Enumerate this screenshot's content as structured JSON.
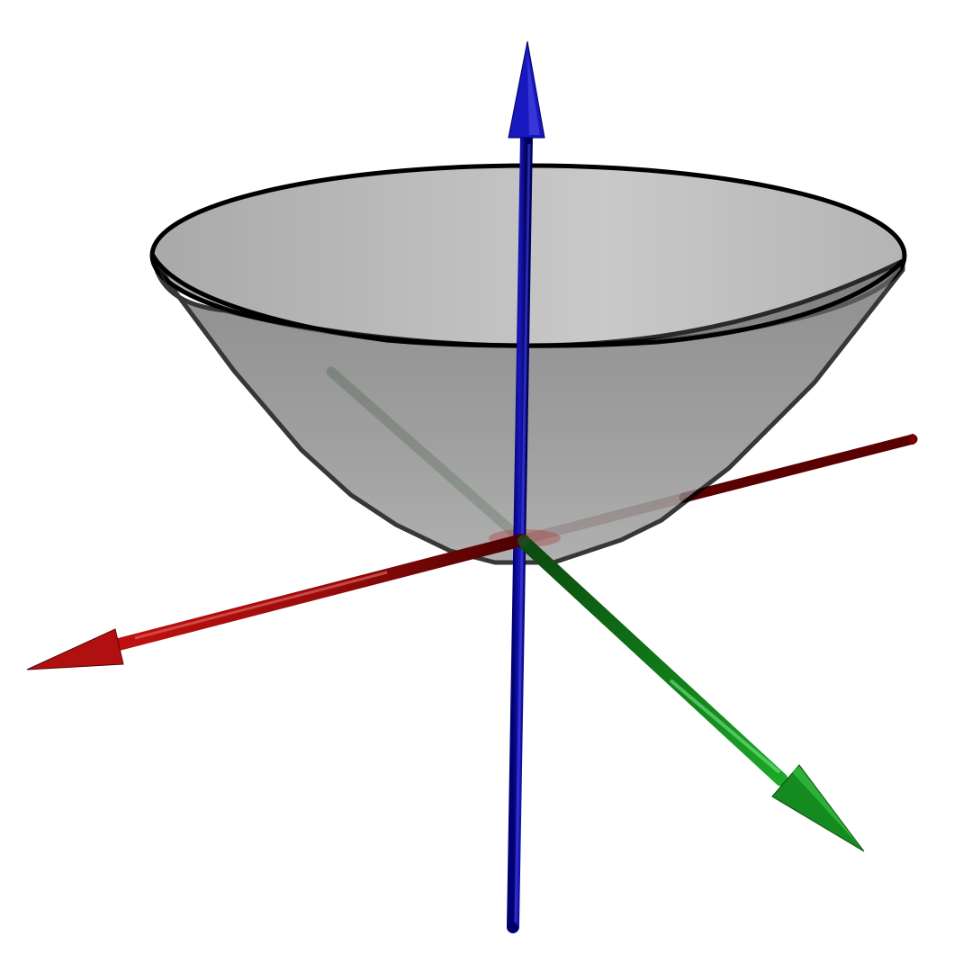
{
  "diagram": {
    "surface": {
      "shape": "paraboloid",
      "opening": "up",
      "fill_inner": "#c4c4c4",
      "fill_outer": "#858585",
      "edge": "#000000",
      "opacity": 0.75
    },
    "axes": [
      {
        "id": "x",
        "color": "#b01010",
        "shade": "#5a0000",
        "highlight": "#e06060",
        "arrow": "front-left"
      },
      {
        "id": "y",
        "color": "#15a020",
        "shade": "#0b4a10",
        "highlight": "#60d070",
        "arrow": "front-right"
      },
      {
        "id": "z",
        "color": "#1414b8",
        "shade": "#000060",
        "highlight": "#5a5af0",
        "arrow": "up"
      }
    ],
    "background": "#ffffff"
  }
}
